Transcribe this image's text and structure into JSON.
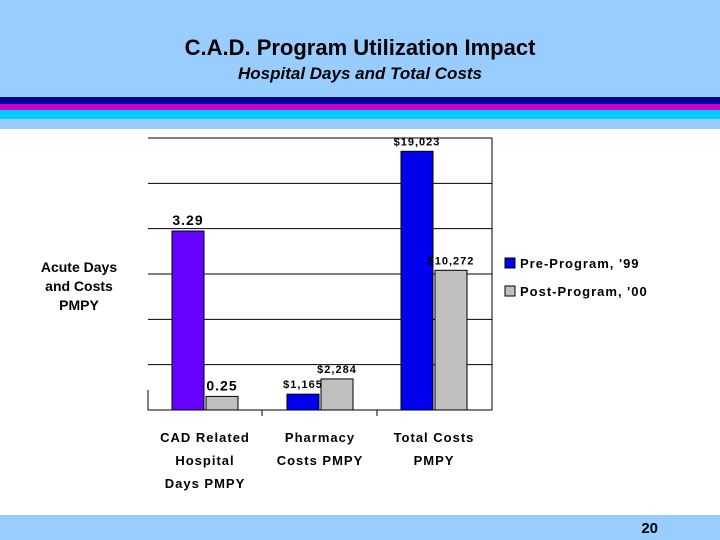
{
  "header": {
    "title": "C.A.D. Program Utilization Impact",
    "subtitle": "Hospital Days and Total Costs"
  },
  "stripes": [
    "#000099",
    "#cc00cc",
    "#00ccff",
    "#99ccff"
  ],
  "footer": {
    "page_number": "20"
  },
  "chart_data": {
    "type": "bar",
    "ylabel": [
      "Acute Days",
      "and Costs",
      "PMPY"
    ],
    "categories": [
      [
        "CAD Related",
        "Hospital",
        "Days PMPY"
      ],
      [
        "Pharmacy",
        "Costs PMPY"
      ],
      [
        "Total Costs",
        "PMPY"
      ]
    ],
    "series": [
      {
        "name": "Pre-Program, '99",
        "color": "#0000ee",
        "labels": [
          "3.29",
          "$1,165",
          "$19,023"
        ]
      },
      {
        "name": "Post-Program, '00",
        "color": "#c0c0c0",
        "labels": [
          "0.25",
          "$2,284",
          "$10,272"
        ]
      }
    ],
    "category_colors": [
      [
        "#6600ff",
        "#c0c0c0"
      ],
      [
        "#0000ee",
        "#c0c0c0"
      ],
      [
        "#0000ee",
        "#c0c0c0"
      ]
    ],
    "values_days": [
      3.29,
      0.25
    ],
    "values_dollars": [
      [
        1165,
        2284
      ],
      [
        19023,
        10272
      ]
    ],
    "days_axis_max": 5,
    "dollar_axis_max": 20000,
    "gridlines": 6,
    "legend_position": "right"
  }
}
